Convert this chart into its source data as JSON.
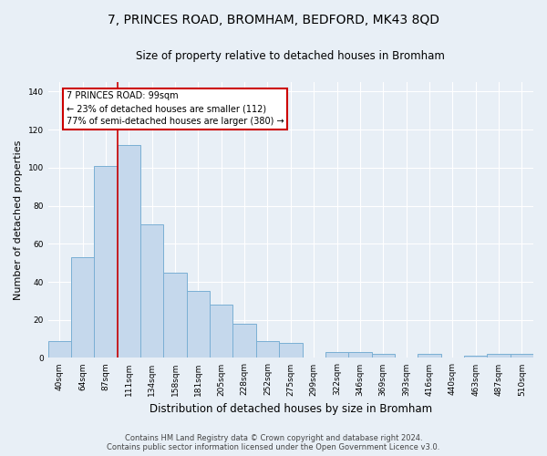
{
  "title": "7, PRINCES ROAD, BROMHAM, BEDFORD, MK43 8QD",
  "subtitle": "Size of property relative to detached houses in Bromham",
  "xlabel": "Distribution of detached houses by size in Bromham",
  "ylabel": "Number of detached properties",
  "bar_labels": [
    "40sqm",
    "64sqm",
    "87sqm",
    "111sqm",
    "134sqm",
    "158sqm",
    "181sqm",
    "205sqm",
    "228sqm",
    "252sqm",
    "275sqm",
    "299sqm",
    "322sqm",
    "346sqm",
    "369sqm",
    "393sqm",
    "416sqm",
    "440sqm",
    "463sqm",
    "487sqm",
    "510sqm"
  ],
  "bar_values": [
    9,
    53,
    101,
    112,
    70,
    45,
    35,
    28,
    18,
    9,
    8,
    0,
    3,
    3,
    2,
    0,
    2,
    0,
    1,
    2,
    2
  ],
  "bar_color": "#c5d8ec",
  "bar_edge_color": "#7aafd4",
  "vline_color": "#cc0000",
  "vline_pos": 2.5,
  "ylim": [
    0,
    145
  ],
  "yticks": [
    0,
    20,
    40,
    60,
    80,
    100,
    120,
    140
  ],
  "annotation_text": "7 PRINCES ROAD: 99sqm\n← 23% of detached houses are smaller (112)\n77% of semi-detached houses are larger (380) →",
  "annotation_box_color": "#ffffff",
  "annotation_box_edge": "#cc0000",
  "footer_line1": "Contains HM Land Registry data © Crown copyright and database right 2024.",
  "footer_line2": "Contains public sector information licensed under the Open Government Licence v3.0.",
  "background_color": "#e8eff6",
  "grid_color": "#ffffff",
  "title_fontsize": 10,
  "subtitle_fontsize": 8.5,
  "ylabel_fontsize": 8,
  "xlabel_fontsize": 8.5,
  "tick_fontsize": 6.5,
  "annotation_fontsize": 7,
  "footer_fontsize": 6
}
